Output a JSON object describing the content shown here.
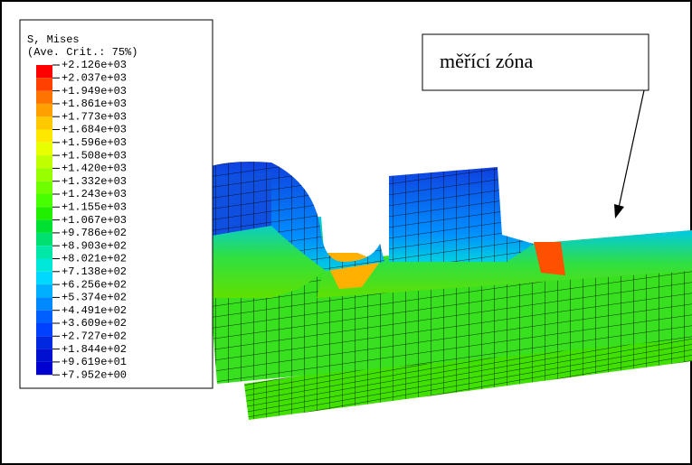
{
  "legend": {
    "title": "S, Mises",
    "subtitle": "(Ave. Crit.: 75%)",
    "levels": [
      "+2.126e+03",
      "+2.037e+03",
      "+1.949e+03",
      "+1.861e+03",
      "+1.773e+03",
      "+1.684e+03",
      "+1.596e+03",
      "+1.508e+03",
      "+1.420e+03",
      "+1.332e+03",
      "+1.243e+03",
      "+1.155e+03",
      "+1.067e+03",
      "+9.786e+02",
      "+8.903e+02",
      "+8.021e+02",
      "+7.138e+02",
      "+6.256e+02",
      "+5.374e+02",
      "+4.491e+02",
      "+3.609e+02",
      "+2.727e+02",
      "+1.844e+02",
      "+9.619e+01",
      "+7.952e+00"
    ],
    "colors": [
      "#ff0000",
      "#ff4000",
      "#ff7400",
      "#ffa000",
      "#ffc800",
      "#ffe800",
      "#e8ff00",
      "#c0ff00",
      "#98ff00",
      "#70ff00",
      "#48ff00",
      "#20f000",
      "#00e030",
      "#00e070",
      "#00e8a8",
      "#00e8d8",
      "#00d8ff",
      "#00b0ff",
      "#0088ff",
      "#0060ff",
      "#0040ff",
      "#0028e0",
      "#0010d0",
      "#0000d0"
    ]
  },
  "annotation": {
    "text": "měřící zóna"
  }
}
